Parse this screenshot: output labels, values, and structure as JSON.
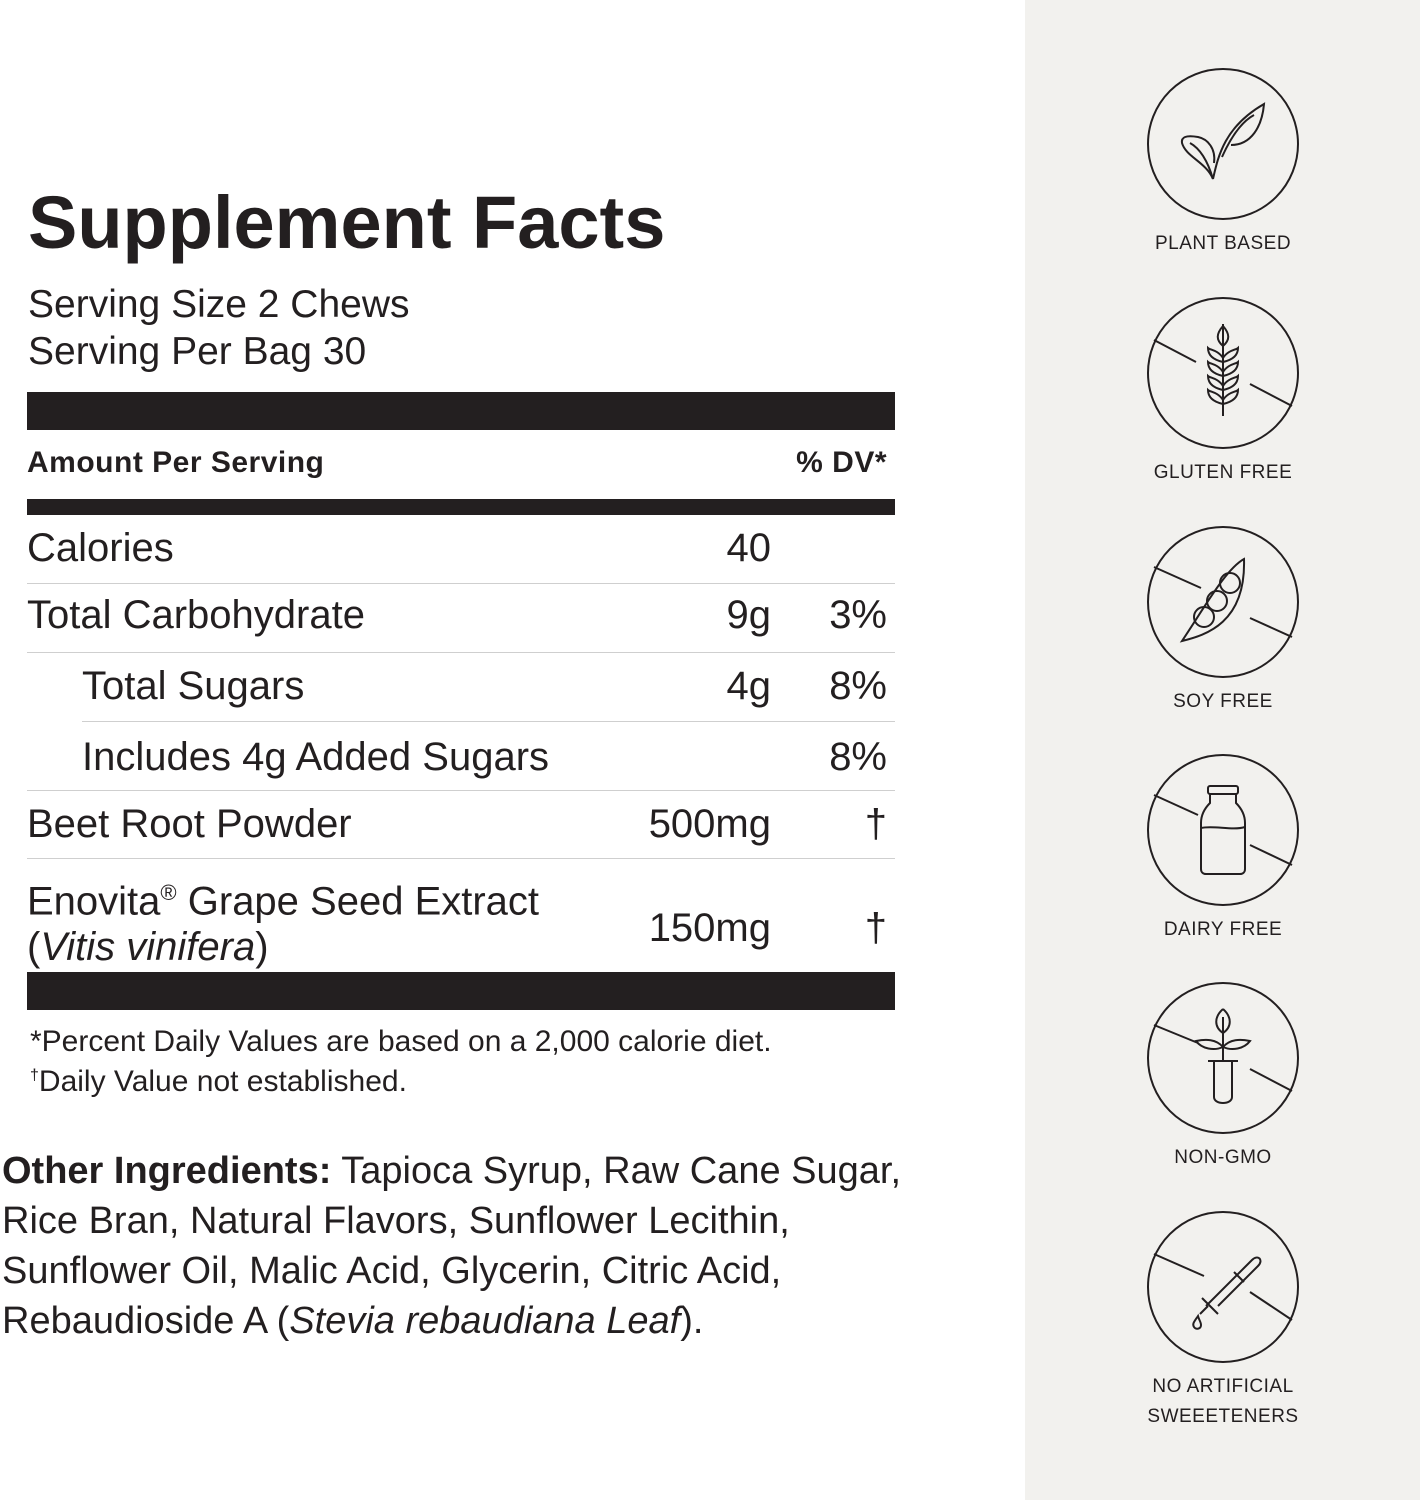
{
  "title": "Supplement Facts",
  "serving_size": "Serving Size 2 Chews",
  "servings_per": "Serving Per Bag 30",
  "header": {
    "amount": "Amount Per Serving",
    "dv": "% DV*"
  },
  "rows": [
    {
      "label": "Calories",
      "amount": "40",
      "dv": ""
    },
    {
      "label": "Total Carbohydrate",
      "amount": "9g",
      "dv": "3%"
    },
    {
      "label": "Total Sugars",
      "amount": "4g",
      "dv": "8%"
    },
    {
      "label": "Includes 4g Added Sugars",
      "amount": "",
      "dv": "8%"
    },
    {
      "label": "Beet Root Powder",
      "amount": "500mg",
      "dv": "†"
    },
    {
      "label": "Enovita",
      "label_reg": "®",
      "label_rest": " Grape Seed Extract",
      "latin": "Vitis vinifera",
      "amount": "150mg",
      "dv": "†"
    }
  ],
  "footnotes": {
    "percent": "*Percent Daily Values are based on a 2,000 calorie diet.",
    "dagger_mark": "†",
    "dagger": "Daily Value not established."
  },
  "other": {
    "label": "Other Ingredients:",
    "text": " Tapioca Syrup, Raw Cane Sugar, Rice Bran, Natural Flavors, Sunflower Lecithin, Sunflower Oil, Malic Acid, Glycerin, Citric Acid, Rebaudioside A (",
    "italic": "Stevia rebaudiana Leaf",
    "end": ")."
  },
  "badges": [
    {
      "icon": "leaf-icon",
      "label": "PLANT BASED"
    },
    {
      "icon": "wheat-icon",
      "label": "GLUTEN FREE"
    },
    {
      "icon": "pea-pod-icon",
      "label": "SOY FREE"
    },
    {
      "icon": "milk-bottle-icon",
      "label": "DAIRY FREE"
    },
    {
      "icon": "plant-test-tube-icon",
      "label": "NON-GMO"
    },
    {
      "icon": "dropper-icon",
      "label": "NO ARTIFICIAL",
      "label2": "SWEEETENERS"
    }
  ],
  "colors": {
    "text": "#231f20",
    "panel": "#f2f1ee"
  }
}
